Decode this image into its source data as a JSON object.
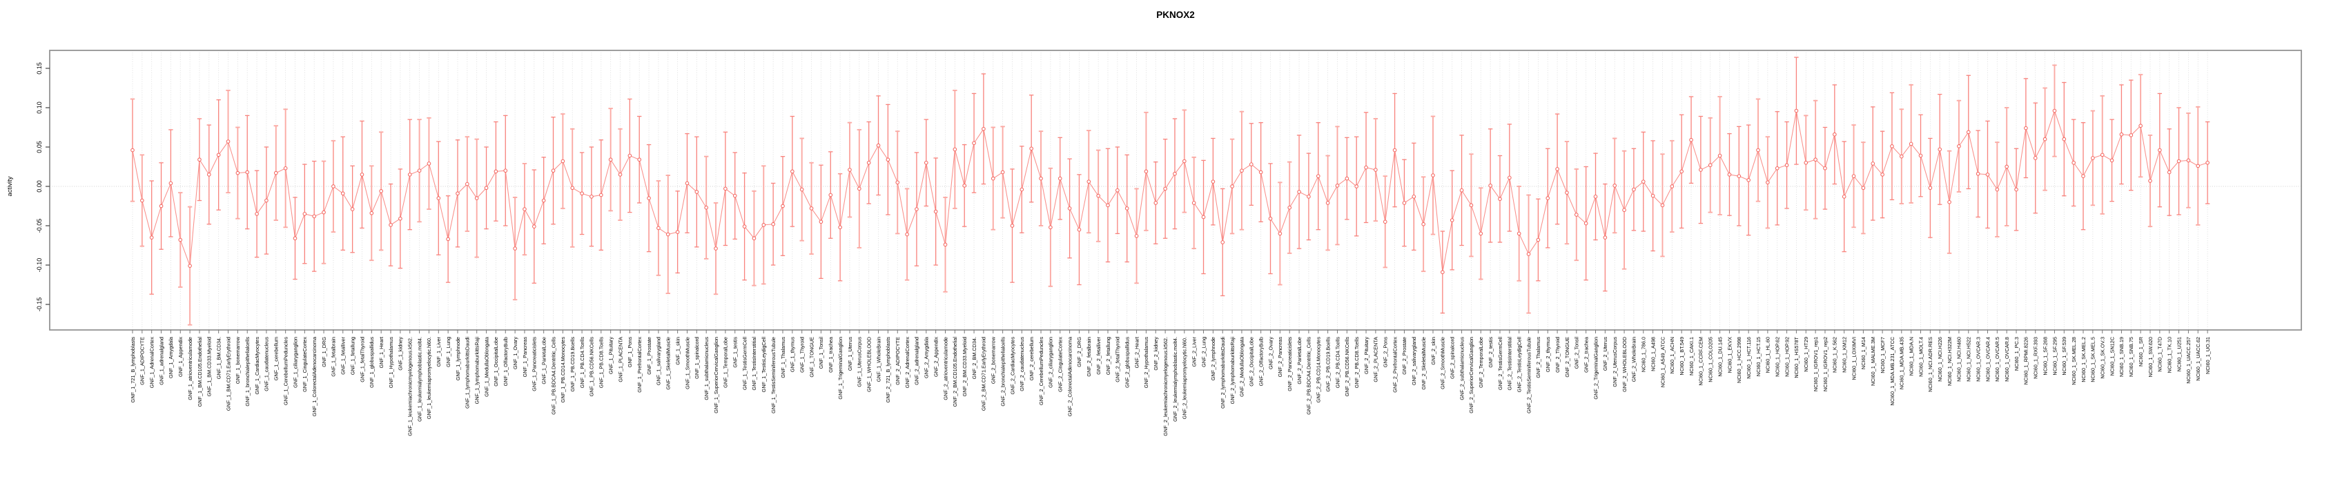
{
  "title": "PKNOX2",
  "axes": {
    "ylabel": "activity",
    "ytick_labels": [
      "-0.15",
      "-0.10",
      "-0.05",
      "0.00",
      "0.05",
      "0.10",
      "0.15"
    ]
  },
  "chart_data": {
    "type": "line",
    "subtype": "points-with-error-bars",
    "title": "PKNOX2",
    "xlabel": "",
    "ylabel": "activity",
    "ylim": [
      -0.182,
      0.173
    ],
    "yticks": [
      -0.15,
      -0.1,
      -0.05,
      0.0,
      0.05,
      0.1,
      0.15
    ],
    "grid": "dotted-vertical-per-category-and-zero-line",
    "legend": "none",
    "error_bars": true,
    "ci_halfwidth_pattern": [
      0.065,
      0.058,
      0.072,
      0.055,
      0.068,
      0.06,
      0.075,
      0.052,
      0.063,
      0.07
    ],
    "colors": {
      "point_stroke": "#f4655f",
      "bar_strong": "#f8827c",
      "bar_light": "#fbaaa4",
      "line": "#f8837d",
      "grid": "#d6d6d6",
      "zero_line": "#cfcfcf",
      "box": "#949494",
      "text": "#000000"
    },
    "categories": [
      "GNF_1_721_B_lymphoblasts",
      "GNF_1_ADIPOCYTE",
      "GNF_1_AdrenalCortex",
      "GNF_1_adrenalgland",
      "GNF_1_Amygdala",
      "GNF_1_Appendix",
      "GNF_1_atrioventricularnode",
      "GNF_1_BM.CD105.Endothelial",
      "GNF_1_BM.CD33.Myeloid",
      "GNF_1_BM.CD34.",
      "GNF_1_BM.CD71.EarlyErythroid",
      "GNF_1_bonemarrow",
      "GNF_1_bronchialepithelialcells",
      "GNF_1_CardiacMyocytes",
      "GNF_1_caudatenucleus",
      "GNF_1_cerebellum",
      "GNF_1_CerebellumPeduncles",
      "GNF_1_ciliaryganglion",
      "GNF_1_CingulateCortex",
      "GNF_1_ColorectalAdenocarcinoma",
      "GNF_1_DRG",
      "GNF_1_fetalbrain",
      "GNF_1_fetalliver",
      "GNF_1_fetallung",
      "GNF_1_fetalThyroid",
      "GNF_1_globuspallidus",
      "GNF_1_Heart",
      "GNF_1_Hypothalamus",
      "GNF_1_kidney",
      "GNF_1_leukemiachronicmyelogenous.k562.",
      "GNF_1_leukemialymphoblastic.molt4.",
      "GNF_1_leukemiapromyelocytic.hl60.",
      "GNF_1_Liver",
      "GNF_1_Lung",
      "GNF_1_lymphnode",
      "GNF_1_lymphomaburkittsDaudi",
      "GNF_1_lymphomaburkittsRaji",
      "GNF_1_MedullaOblongata",
      "GNF_1_OccipitalLobe",
      "GNF_1_OlfactoryBulb",
      "GNF_1_Ovary",
      "GNF_1_Pancreas",
      "GNF_1_Pancreaticislets",
      "GNF_1_ParietalLobe",
      "GNF_1_PB.BDCA4.Dentritic_Cells",
      "GNF_1_PB.CD14.Monocytes",
      "GNF_1_PB.CD19.Bcells",
      "GNF_1_PB.CD4.Tcells",
      "GNF_1_PB.CD56.NKCells",
      "GNF_1_PB.CD8.Tcells",
      "GNF_1_Pituitary",
      "GNF_1_PLACENTA",
      "GNF_1_Pons",
      "GNF_1_PrefrontalCortex",
      "GNF_1_Prostate",
      "GNF_1_salivarygland",
      "GNF_1_SkeletalMuscle",
      "GNF_1_skin",
      "GNF_1_SmoothMuscle",
      "GNF_1_spinalcord",
      "GNF_1_subthalamicnucleus",
      "GNF_1_SuperiorCervicalGanglion",
      "GNF_1_TemporalLobe",
      "GNF_1_testis",
      "GNF_1_TestisGermCell",
      "GNF_1_TestisInterstitial",
      "GNF_1_TestisLeydigCell",
      "GNF_1_TestisSeminiferousTubule",
      "GNF_1_Thalamus",
      "GNF_1_thymus",
      "GNF_1_Thyroid",
      "GNF_1_TONGUE",
      "GNF_1_Tonsil",
      "GNF_1_trachea",
      "GNF_1_TrigeminalGanglion",
      "GNF_1_Uterus",
      "GNF_1_UterusCorpus",
      "GNF_1_WHOLEBLOOD",
      "GNF_1_WholeBrain",
      "GNF_2_721_B_lymphoblasts",
      "GNF_2_ADIPOCYTE",
      "GNF_2_AdrenalCortex",
      "GNF_2_adrenalgland",
      "GNF_2_Amygdala",
      "GNF_2_Appendix",
      "GNF_2_atrioventricularnode",
      "GNF_2_BM.CD105.Endothelial",
      "GNF_2_BM.CD33.Myeloid",
      "GNF_2_BM.CD34.",
      "GNF_2_BM.CD71.EarlyErythroid",
      "GNF_2_bonemarrow",
      "GNF_2_bronchialepithelialcells",
      "GNF_2_CardiacMyocytes",
      "GNF_2_caudatenucleus",
      "GNF_2_cerebellum",
      "GNF_2_CerebellumPeduncles",
      "GNF_2_ciliaryganglion",
      "GNF_2_CingulateCortex",
      "GNF_2_ColorectalAdenocarcinoma",
      "GNF_2_DRG",
      "GNF_2_fetalbrain",
      "GNF_2_fetalliver",
      "GNF_2_fetallung",
      "GNF_2_fetalThyroid",
      "GNF_2_globuspallidus",
      "GNF_2_Heart",
      "GNF_2_Hypothalamus",
      "GNF_2_kidney",
      "GNF_2_leukemiachronicmyelogenous.k562.",
      "GNF_2_leukemialymphoblastic.molt4.",
      "GNF_2_leukemiapromyelocytic.hl60.",
      "GNF_2_Liver",
      "GNF_2_Lung",
      "GNF_2_lymphnode",
      "GNF_2_lymphomaburkittsDaudi",
      "GNF_2_lymphomaburkittsRaji",
      "GNF_2_MedullaOblongata",
      "GNF_2_OccipitalLobe",
      "GNF_2_OlfactoryBulb",
      "GNF_2_Ovary",
      "GNF_2_Pancreas",
      "GNF_2_Pancreaticislets",
      "GNF_2_ParietalLobe",
      "GNF_2_PB.BDCA4.Dentritic_Cells",
      "GNF_2_PB.CD14.Monocytes",
      "GNF_2_PB.CD19.Bcells",
      "GNF_2_PB.CD4.Tcells",
      "GNF_2_PB.CD56.NKCells",
      "GNF_2_PB.CD8.Tcells",
      "GNF_2_Pituitary",
      "GNF_2_PLACENTA",
      "GNF_2_Pons",
      "GNF_2_PrefrontalCortex",
      "GNF_2_Prostate",
      "GNF_2_salivarygland",
      "GNF_2_SkeletalMuscle",
      "GNF_2_skin",
      "GNF_2_SmoothMuscle",
      "GNF_2_spinalcord",
      "GNF_2_subthalamicnucleus",
      "GNF_2_SuperiorCervicalGanglion",
      "GNF_2_TemporalLobe",
      "GNF_2_testis",
      "GNF_2_TestisGermCell",
      "GNF_2_TestisInterstitial",
      "GNF_2_TestisLeydigCell",
      "GNF_2_TestisSeminiferousTubule",
      "GNF_2_Thalamus",
      "GNF_2_thymus",
      "GNF_2_Thyroid",
      "GNF_2_TONGUE",
      "GNF_2_Tonsil",
      "GNF_2_trachea",
      "GNF_2_TrigeminalGanglion",
      "GNF_2_Uterus",
      "GNF_2_UterusCorpus",
      "GNF_2_WHOLEBLOOD",
      "GNF_2_WholeBrain",
      "NCI60_1_786.0",
      "NCI60_1_A498",
      "NCI60_1_A549_ATCC",
      "NCI60_1_ACHN",
      "NCI60_1_BT.549",
      "NCI60_1_CAKI.1",
      "NCI60_1_CCRF.CEM",
      "NCI60_1_COLO205",
      "NCI60_1_DU.145",
      "NCI60_1_EKVX",
      "NCI60_1_HCC.2998",
      "NCI60_1_HCT.116",
      "NCI60_1_HCT.15",
      "NCI60_1_HL.60",
      "NCI60_1_HOP.62",
      "NCI60_1_HOP.92",
      "NCI60_1_HS578T",
      "NCI60_1_HT29",
      "NCI60_1_IGROV1_rep1",
      "NCI60_1_IGROV1_rep2",
      "NCI60_1_K.562",
      "NCI60_1_KM12",
      "NCI60_1_LOXIMVI",
      "NCI60_1_M14",
      "NCI60_1_MALME.3M",
      "NCI60_1_MCF7",
      "NCI60_1_MDA.MB.231_ATCC",
      "NCI60_1_MDA.MB.435",
      "NCI60_1_MDA.N",
      "NCI60_1_MOLT.4",
      "NCI60_1_NCI.ADR.RES",
      "NCI60_1_NCI.H226",
      "NCI60_1_NCI.H322M",
      "NCI60_1_NCI.H460",
      "NCI60_1_NCI.H522",
      "NCI60_1_OVCAR.3",
      "NCI60_1_OVCAR.4",
      "NCI60_1_OVCAR.5",
      "NCI60_1_OVCAR.8",
      "NCI60_1_PC.3",
      "NCI60_1_RPMI.8226",
      "NCI60_1_RXF.393",
      "NCI60_1_SF.268",
      "NCI60_1_SF.295",
      "NCI60_1_SF.539",
      "NCI60_1_SK.MEL.28",
      "NCI60_1_SK.MEL.2",
      "NCI60_1_SK.MEL.5",
      "NCI60_1_SK.OV.3",
      "NCI60_1_SN12C",
      "NCI60_1_SNB.19",
      "NCI60_1_SNB.75",
      "NCI60_1_SR",
      "NCI60_1_SW.620",
      "NCI60_1_T47D",
      "NCI60_1_TK.10",
      "NCI60_1_U251",
      "NCI60_1_UACC.257",
      "NCI60_1_UACC.62",
      "NCI60_1_UO.31"
    ],
    "values": [
      0.046,
      -0.018,
      -0.065,
      -0.025,
      0.004,
      -0.068,
      -0.101,
      0.034,
      0.015,
      0.04,
      0.057,
      0.017,
      0.018,
      -0.035,
      -0.018,
      0.017,
      0.023,
      -0.066,
      -0.035,
      -0.038,
      -0.033,
      0.0,
      -0.009,
      -0.029,
      0.015,
      -0.034,
      -0.006,
      -0.049,
      -0.041,
      0.015,
      0.02,
      0.029,
      -0.015,
      -0.067,
      -0.009,
      0.003,
      -0.015,
      -0.002,
      0.019,
      0.02,
      -0.079,
      -0.029,
      -0.051,
      -0.018,
      0.02,
      0.032,
      -0.002,
      -0.009,
      -0.013,
      -0.011,
      0.034,
      0.015,
      0.039,
      0.034,
      -0.015,
      -0.053,
      -0.061,
      -0.058,
      0.004,
      -0.007,
      -0.027,
      -0.079,
      -0.003,
      -0.012,
      -0.051,
      -0.066,
      -0.049,
      -0.048,
      -0.025,
      0.019,
      -0.004,
      -0.028,
      -0.045,
      -0.011,
      -0.052,
      0.021,
      -0.003,
      0.03,
      0.052,
      0.034,
      0.005,
      -0.061,
      -0.029,
      0.03,
      -0.032,
      -0.074,
      0.047,
      0.001,
      0.055,
      0.073,
      0.01,
      0.018,
      -0.05,
      -0.004,
      0.048,
      0.01,
      -0.052,
      0.01,
      -0.028,
      -0.055,
      0.006,
      -0.012,
      -0.024,
      -0.005,
      -0.028,
      -0.063,
      0.019,
      -0.021,
      -0.003,
      0.016,
      0.032,
      -0.021,
      -0.039,
      0.006,
      -0.071,
      0.0,
      0.02,
      0.028,
      0.018,
      -0.041,
      -0.06,
      -0.027,
      -0.007,
      -0.013,
      0.013,
      -0.021,
      0.001,
      0.01,
      0.0,
      0.024,
      0.021,
      -0.045,
      0.046,
      -0.021,
      -0.013,
      -0.048,
      0.014,
      -0.109,
      -0.043,
      -0.005,
      -0.024,
      -0.06,
      0.001,
      -0.016,
      0.011,
      -0.06,
      -0.086,
      -0.068,
      -0.015,
      0.022,
      -0.008,
      -0.036,
      -0.047,
      -0.013,
      -0.065,
      0.001,
      -0.03,
      -0.004,
      0.006,
      -0.012,
      -0.024,
      0.0,
      0.019,
      0.059,
      0.021,
      0.027,
      0.039,
      0.015,
      0.013,
      0.008,
      0.046,
      0.005,
      0.023,
      0.027,
      0.096,
      0.03,
      0.034,
      0.023,
      0.066,
      -0.013,
      0.013,
      -0.002,
      0.029,
      0.015,
      0.051,
      0.038,
      0.054,
      0.039,
      -0.002,
      0.047,
      -0.02,
      0.051,
      0.069,
      0.016,
      0.015,
      -0.004,
      0.025,
      -0.004,
      0.074,
      0.036,
      0.06,
      0.096,
      0.06,
      0.03,
      0.013,
      0.036,
      0.04,
      0.033,
      0.066,
      0.065,
      0.077,
      0.007,
      0.046,
      0.018,
      0.032,
      0.033,
      0.026,
      0.03
    ]
  }
}
